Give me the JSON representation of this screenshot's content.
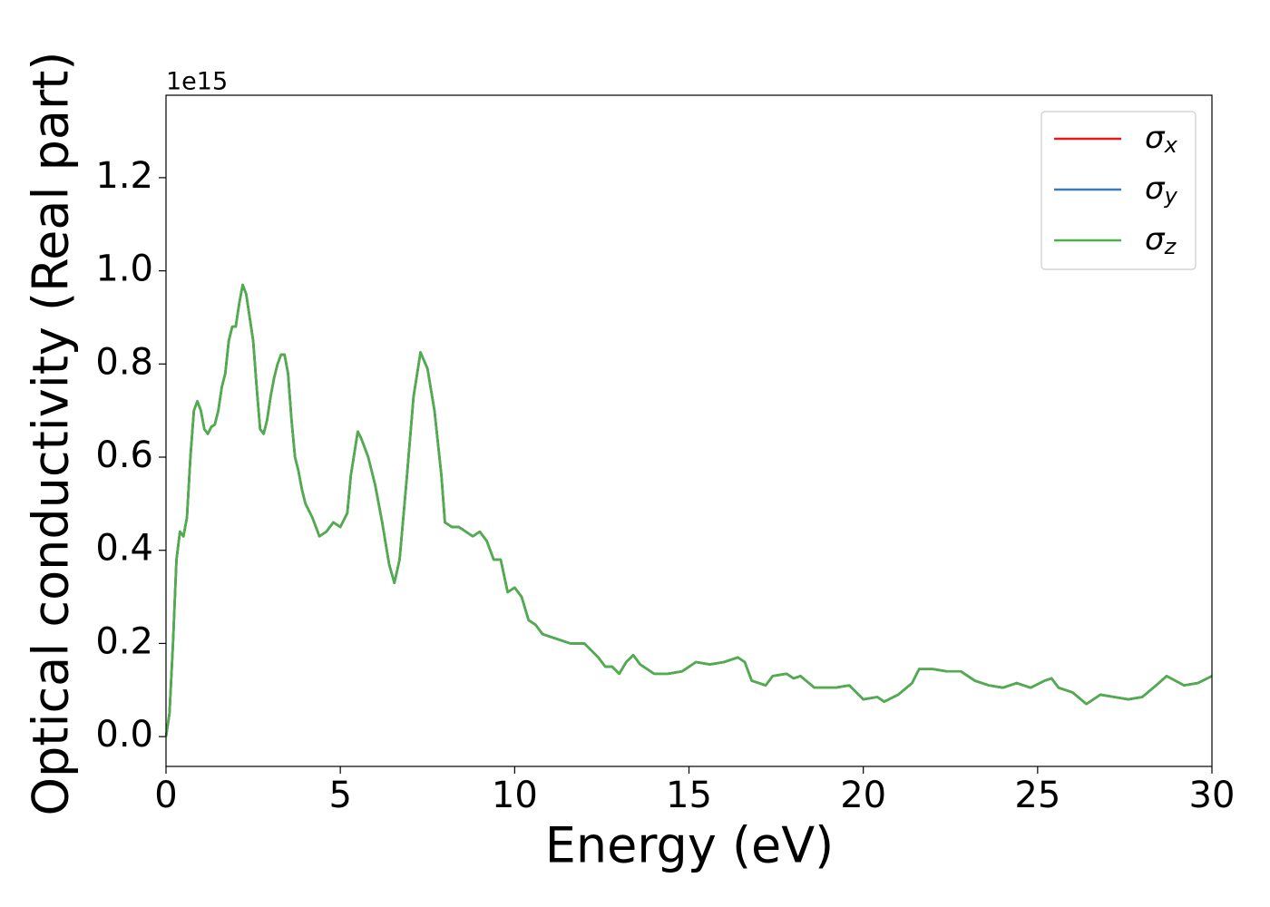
{
  "chart_data": {
    "type": "line",
    "ylabel": "Optical conductivity (Real part)",
    "xlabel": "Energy (eV)",
    "offset_label": "1e15",
    "xlim": [
      0,
      30
    ],
    "xticks": [
      0,
      5,
      10,
      15,
      20,
      25,
      30
    ],
    "ylim": [
      -0.064,
      1.377
    ],
    "yticks": [
      {
        "value": 0,
        "label": "0.0"
      },
      0.2,
      0.4,
      0.6,
      0.8,
      {
        "value": 1,
        "label": "1.0"
      },
      1.2
    ],
    "legend": "upper right",
    "grid": false,
    "x": [
      0,
      0.1,
      0.2,
      0.3,
      0.4,
      0.5,
      0.6,
      0.7,
      0.8,
      0.9,
      1.0,
      1.1,
      1.2,
      1.3,
      1.4,
      1.5,
      1.6,
      1.7,
      1.8,
      1.9,
      2.0,
      2.1,
      2.2,
      2.3,
      2.4,
      2.5,
      2.6,
      2.7,
      2.8,
      2.9,
      3.0,
      3.1,
      3.2,
      3.3,
      3.4,
      3.5,
      3.6,
      3.7,
      3.8,
      3.9,
      4.0,
      4.2,
      4.4,
      4.6,
      4.8,
      5.0,
      5.2,
      5.3,
      5.5,
      5.6,
      5.8,
      6.0,
      6.2,
      6.4,
      6.55,
      6.7,
      6.9,
      7.1,
      7.3,
      7.5,
      7.7,
      7.9,
      8.0,
      8.2,
      8.4,
      8.6,
      8.8,
      9.0,
      9.2,
      9.4,
      9.6,
      9.8,
      10.0,
      10.2,
      10.4,
      10.6,
      10.8,
      11.0,
      11.4,
      11.6,
      12.0,
      12.2,
      12.4,
      12.6,
      12.8,
      13.0,
      13.2,
      13.4,
      13.6,
      14.0,
      14.4,
      14.8,
      15.2,
      15.6,
      16.0,
      16.4,
      16.6,
      16.8,
      17.2,
      17.4,
      17.8,
      18.0,
      18.2,
      18.6,
      19.2,
      19.6,
      20.0,
      20.4,
      20.6,
      21.0,
      21.4,
      21.6,
      22.0,
      22.4,
      22.8,
      23.2,
      23.6,
      24.0,
      24.4,
      24.8,
      25.2,
      25.4,
      25.6,
      26.0,
      26.4,
      26.8,
      27.2,
      27.6,
      28.0,
      28.4,
      28.7,
      29.2,
      29.6,
      30.0
    ],
    "series": [
      {
        "name": "σx",
        "color": "#e41a1c",
        "values": [
          0,
          0.05,
          0.2,
          0.38,
          0.44,
          0.43,
          0.47,
          0.6,
          0.7,
          0.72,
          0.7,
          0.66,
          0.65,
          0.665,
          0.67,
          0.7,
          0.75,
          0.78,
          0.85,
          0.88,
          0.88,
          0.93,
          0.97,
          0.95,
          0.9,
          0.85,
          0.75,
          0.66,
          0.65,
          0.68,
          0.73,
          0.77,
          0.8,
          0.82,
          0.82,
          0.78,
          0.68,
          0.6,
          0.57,
          0.53,
          0.5,
          0.47,
          0.43,
          0.44,
          0.46,
          0.45,
          0.48,
          0.56,
          0.655,
          0.64,
          0.6,
          0.54,
          0.46,
          0.37,
          0.33,
          0.38,
          0.55,
          0.73,
          0.825,
          0.79,
          0.7,
          0.56,
          0.46,
          0.45,
          0.45,
          0.44,
          0.43,
          0.44,
          0.42,
          0.38,
          0.38,
          0.31,
          0.32,
          0.3,
          0.25,
          0.24,
          0.22,
          0.215,
          0.205,
          0.2,
          0.2,
          0.185,
          0.17,
          0.15,
          0.15,
          0.135,
          0.16,
          0.175,
          0.155,
          0.135,
          0.135,
          0.14,
          0.16,
          0.155,
          0.16,
          0.17,
          0.16,
          0.12,
          0.11,
          0.13,
          0.135,
          0.125,
          0.13,
          0.105,
          0.105,
          0.11,
          0.08,
          0.085,
          0.075,
          0.09,
          0.115,
          0.145,
          0.145,
          0.14,
          0.14,
          0.12,
          0.11,
          0.105,
          0.115,
          0.105,
          0.12,
          0.125,
          0.105,
          0.095,
          0.07,
          0.09,
          0.085,
          0.08,
          0.085,
          0.11,
          0.13,
          0.11,
          0.115,
          0.13
        ]
      },
      {
        "name": "σy",
        "color": "#377eb8",
        "values": [
          0,
          0.05,
          0.2,
          0.38,
          0.44,
          0.43,
          0.47,
          0.6,
          0.7,
          0.72,
          0.7,
          0.66,
          0.65,
          0.665,
          0.67,
          0.7,
          0.75,
          0.78,
          0.85,
          0.88,
          0.88,
          0.93,
          0.97,
          0.95,
          0.9,
          0.85,
          0.75,
          0.66,
          0.65,
          0.68,
          0.73,
          0.77,
          0.8,
          0.82,
          0.82,
          0.78,
          0.68,
          0.6,
          0.57,
          0.53,
          0.5,
          0.47,
          0.43,
          0.44,
          0.46,
          0.45,
          0.48,
          0.56,
          0.655,
          0.64,
          0.6,
          0.54,
          0.46,
          0.37,
          0.33,
          0.38,
          0.55,
          0.73,
          0.825,
          0.79,
          0.7,
          0.56,
          0.46,
          0.45,
          0.45,
          0.44,
          0.43,
          0.44,
          0.42,
          0.38,
          0.38,
          0.31,
          0.32,
          0.3,
          0.25,
          0.24,
          0.22,
          0.215,
          0.205,
          0.2,
          0.2,
          0.185,
          0.17,
          0.15,
          0.15,
          0.135,
          0.16,
          0.175,
          0.155,
          0.135,
          0.135,
          0.14,
          0.16,
          0.155,
          0.16,
          0.17,
          0.16,
          0.12,
          0.11,
          0.13,
          0.135,
          0.125,
          0.13,
          0.105,
          0.105,
          0.11,
          0.08,
          0.085,
          0.075,
          0.09,
          0.115,
          0.145,
          0.145,
          0.14,
          0.14,
          0.12,
          0.11,
          0.105,
          0.115,
          0.105,
          0.12,
          0.125,
          0.105,
          0.095,
          0.07,
          0.09,
          0.085,
          0.08,
          0.085,
          0.11,
          0.13,
          0.11,
          0.115,
          0.13
        ]
      },
      {
        "name": "σz",
        "color": "#4daf4a",
        "values": [
          0,
          0.05,
          0.2,
          0.38,
          0.44,
          0.43,
          0.47,
          0.6,
          0.7,
          0.72,
          0.7,
          0.66,
          0.65,
          0.665,
          0.67,
          0.7,
          0.75,
          0.78,
          0.85,
          0.88,
          0.88,
          0.93,
          0.97,
          0.95,
          0.9,
          0.85,
          0.75,
          0.66,
          0.65,
          0.68,
          0.73,
          0.77,
          0.8,
          0.82,
          0.82,
          0.78,
          0.68,
          0.6,
          0.57,
          0.53,
          0.5,
          0.47,
          0.43,
          0.44,
          0.46,
          0.45,
          0.48,
          0.56,
          0.655,
          0.64,
          0.6,
          0.54,
          0.46,
          0.37,
          0.33,
          0.38,
          0.55,
          0.73,
          0.825,
          0.79,
          0.7,
          0.56,
          0.46,
          0.45,
          0.45,
          0.44,
          0.43,
          0.44,
          0.42,
          0.38,
          0.38,
          0.31,
          0.32,
          0.3,
          0.25,
          0.24,
          0.22,
          0.215,
          0.205,
          0.2,
          0.2,
          0.185,
          0.17,
          0.15,
          0.15,
          0.135,
          0.16,
          0.175,
          0.155,
          0.135,
          0.135,
          0.14,
          0.16,
          0.155,
          0.16,
          0.17,
          0.16,
          0.12,
          0.11,
          0.13,
          0.135,
          0.125,
          0.13,
          0.105,
          0.105,
          0.11,
          0.08,
          0.085,
          0.075,
          0.09,
          0.115,
          0.145,
          0.145,
          0.14,
          0.14,
          0.12,
          0.11,
          0.105,
          0.115,
          0.105,
          0.12,
          0.125,
          0.105,
          0.095,
          0.07,
          0.09,
          0.085,
          0.08,
          0.085,
          0.11,
          0.13,
          0.11,
          0.115,
          0.13
        ]
      }
    ]
  }
}
